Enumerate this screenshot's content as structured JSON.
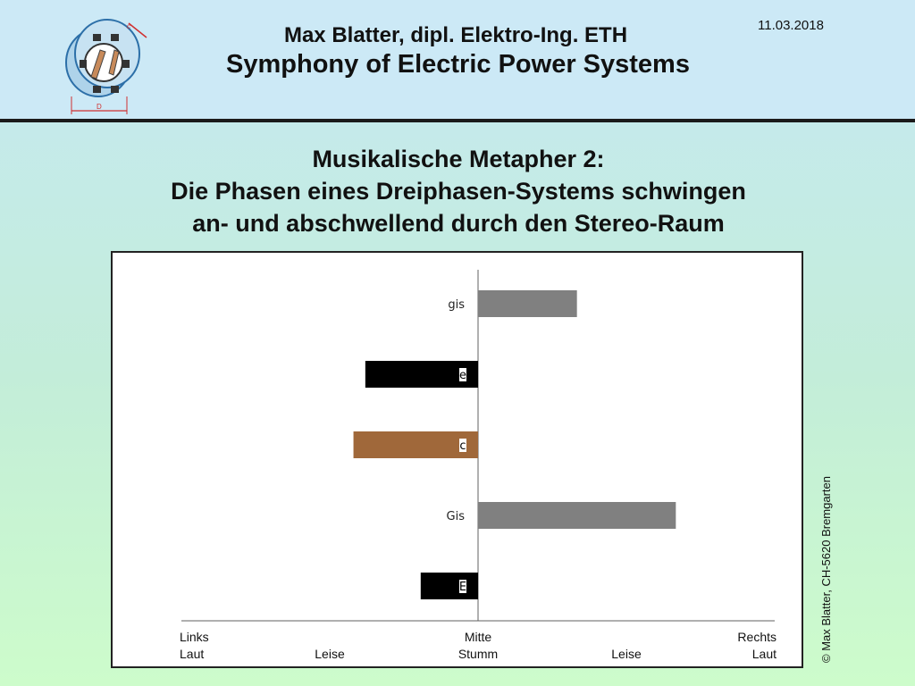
{
  "header": {
    "author": "Max Blatter, dipl. Elektro-Ing. ETH",
    "title": "Symphony of Electric Power Systems",
    "date": "11.03.2018",
    "logo_icon": "three-phase-machine-icon"
  },
  "slide": {
    "title_lines": [
      "Musikalische Metapher 2:",
      "Die Phasen eines Dreiphasen-Systems schwingen",
      "an- und abschwellend durch den Stereo-Raum"
    ]
  },
  "copyright": "© Max Blatter, CH-5620 Bremgarten",
  "colors": {
    "grey": "#808080",
    "black": "#000000",
    "brown": "#a0683a",
    "axis": "#606060"
  },
  "chart_data": {
    "type": "bar",
    "orientation": "horizontal",
    "categories": [
      "gis",
      "e",
      "c",
      "Gis",
      "E"
    ],
    "values": [
      0.5,
      -0.57,
      -0.63,
      1.0,
      -0.29
    ],
    "bar_colors": [
      "#808080",
      "#000000",
      "#a0683a",
      "#808080",
      "#000000"
    ],
    "label_boxed": [
      false,
      true,
      true,
      false,
      true
    ],
    "xlim": [
      -1.5,
      1.5
    ],
    "x_tick_labels_top": [
      {
        "x": -1.5,
        "label": "Links"
      },
      {
        "x": 0,
        "label": "Mitte"
      },
      {
        "x": 1.5,
        "label": "Rechts"
      }
    ],
    "x_tick_labels_bottom": [
      {
        "x": -1.5,
        "label": "Laut"
      },
      {
        "x": -0.75,
        "label": "Leise"
      },
      {
        "x": 0,
        "label": "Stumm"
      },
      {
        "x": 0.75,
        "label": "Leise"
      },
      {
        "x": 1.5,
        "label": "Laut"
      }
    ],
    "grid": false,
    "legend": "none"
  }
}
